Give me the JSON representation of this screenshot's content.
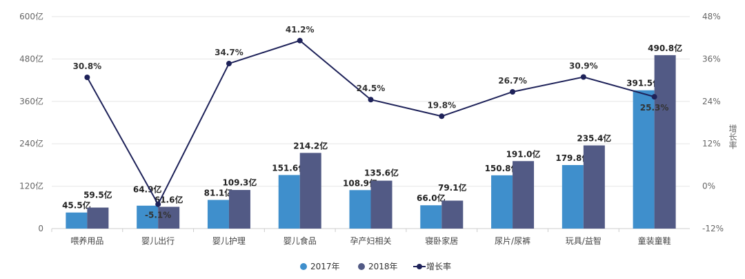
{
  "chart_data": {
    "type": "bar",
    "categories": [
      "喂养用品",
      "婴儿出行",
      "婴儿护理",
      "婴儿食品",
      "孕产妇相关",
      "寝卧家居",
      "尿片/尿裤",
      "玩具/益智",
      "童装童鞋"
    ],
    "series": [
      {
        "name": "2017年",
        "type": "bar",
        "color": "#3f8fcc",
        "values": [
          45.5,
          64.9,
          81.1,
          151.6,
          108.9,
          66.0,
          150.8,
          179.8,
          391.5
        ],
        "labels": [
          "45.5亿",
          "64.9亿",
          "81.1亿",
          "151.6亿",
          "108.9亿",
          "66.0亿",
          "150.8亿",
          "179.8亿",
          "391.5亿"
        ]
      },
      {
        "name": "2018年",
        "type": "bar",
        "color": "#525a85",
        "values": [
          59.5,
          61.6,
          109.3,
          214.2,
          135.6,
          79.1,
          191.0,
          235.4,
          490.8
        ],
        "labels": [
          "59.5亿",
          "61.6亿",
          "109.3亿",
          "214.2亿",
          "135.6亿",
          "79.1亿",
          "191.0亿",
          "235.4亿",
          "490.8亿"
        ]
      },
      {
        "name": "增长率",
        "type": "line",
        "color": "#1e2259",
        "axis": "right",
        "values": [
          30.8,
          -5.1,
          34.7,
          41.2,
          24.5,
          19.8,
          26.7,
          30.9,
          25.3
        ],
        "labels": [
          "30.8%",
          "-5.1%",
          "34.7%",
          "41.2%",
          "24.5%",
          "19.8%",
          "26.7%",
          "30.9%",
          "25.3%"
        ]
      }
    ],
    "ylim": [
      0,
      600
    ],
    "yticks": [
      "0",
      "120亿",
      "240亿",
      "360亿",
      "480亿",
      "600亿"
    ],
    "y2lim": [
      -12,
      48
    ],
    "y2ticks": [
      "-12%",
      "0%",
      "12%",
      "24%",
      "36%",
      "48%"
    ],
    "y2label": "增长率",
    "legend": "bottom",
    "grid": true
  }
}
